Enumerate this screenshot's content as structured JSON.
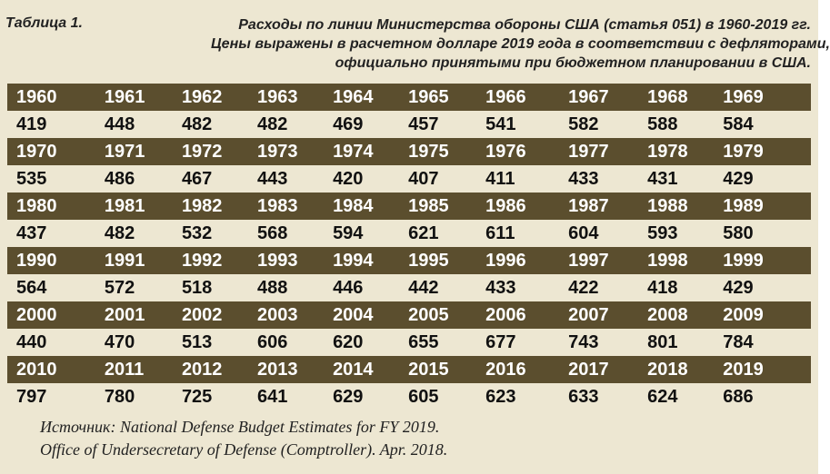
{
  "table_label": "Таблица 1.",
  "header": {
    "line1": "Расходы по линии Министерства обороны США (статья 051) в 1960-2019 гг.",
    "line2": "Цены выражены в расчетном долларе 2019 года в соответствии с дефляторами,",
    "line3": "официально принятыми при бюджетном планировании в США."
  },
  "colors": {
    "year_row_bg": "#5b4e2e",
    "page_bg": "#ede7d2"
  },
  "blocks": [
    {
      "years": [
        "1960",
        "1961",
        "1962",
        "1963",
        "1964",
        "1965",
        "1966",
        "1967",
        "1968",
        "1969"
      ],
      "values": [
        "419",
        "448",
        "482",
        "482",
        "469",
        "457",
        "541",
        "582",
        "588",
        "584"
      ]
    },
    {
      "years": [
        "1970",
        "1971",
        "1972",
        "1973",
        "1974",
        "1975",
        "1976",
        "1977",
        "1978",
        "1979"
      ],
      "values": [
        "535",
        "486",
        "467",
        "443",
        "420",
        "407",
        "411",
        "433",
        "431",
        "429"
      ]
    },
    {
      "years": [
        "1980",
        "1981",
        "1982",
        "1983",
        "1984",
        "1985",
        "1986",
        "1987",
        "1988",
        "1989"
      ],
      "values": [
        "437",
        "482",
        "532",
        "568",
        "594",
        "621",
        "611",
        "604",
        "593",
        "580"
      ]
    },
    {
      "years": [
        "1990",
        "1991",
        "1992",
        "1993",
        "1994",
        "1995",
        "1996",
        "1997",
        "1998",
        "1999"
      ],
      "values": [
        "564",
        "572",
        "518",
        "488",
        "446",
        "442",
        "433",
        "422",
        "418",
        "429"
      ]
    },
    {
      "years": [
        "2000",
        "2001",
        "2002",
        "2003",
        "2004",
        "2005",
        "2006",
        "2007",
        "2008",
        "2009"
      ],
      "values": [
        "440",
        "470",
        "513",
        "606",
        "620",
        "655",
        "677",
        "743",
        "801",
        "784"
      ]
    },
    {
      "years": [
        "2010",
        "2011",
        "2012",
        "2013",
        "2014",
        "2015",
        "2016",
        "2017",
        "2018",
        "2019"
      ],
      "values": [
        "797",
        "780",
        "725",
        "641",
        "629",
        "605",
        "623",
        "633",
        "624",
        "686"
      ]
    }
  ],
  "source": {
    "line1": "Источник: National Defense Budget Estimates for FY 2019.",
    "line2": "Office of Undersecretary of Defense (Comptroller). Apr. 2018."
  }
}
